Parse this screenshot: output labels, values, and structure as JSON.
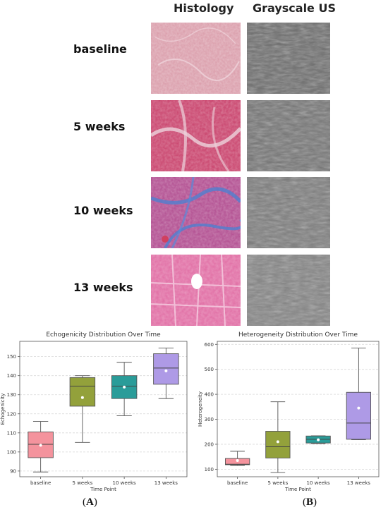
{
  "figure": {
    "column_headers": [
      "Histology",
      "Grayscale US"
    ],
    "rows": [
      {
        "label": "baseline",
        "histology_tint": "#d99aa8"
      },
      {
        "label": "5 weeks",
        "histology_tint": "#c8406a"
      },
      {
        "label": "10 weeks",
        "histology_tint": "#9a5fb0"
      },
      {
        "label": "13 weeks",
        "histology_tint": "#e06aa2"
      }
    ],
    "panel_labels": [
      {
        "open": "(",
        "letter": "A",
        "close": ")"
      },
      {
        "open": "(",
        "letter": "B",
        "close": ")"
      }
    ]
  },
  "chart_data": [
    {
      "type": "box",
      "title": "Echogenicity Distribution Over Time",
      "xlabel": "Time Point",
      "ylabel": "Echogenicity",
      "categories": [
        "baseline",
        "5 weeks",
        "10 weeks",
        "13 weeks"
      ],
      "colors": [
        "#f4939d",
        "#93a13b",
        "#2a9c99",
        "#ae9ae6"
      ],
      "ylim": [
        87,
        158
      ],
      "yticks": [
        90,
        100,
        110,
        120,
        130,
        140,
        150
      ],
      "boxes": [
        {
          "whislo": 89.5,
          "q1": 97,
          "med": 104,
          "q3": 110.5,
          "whishi": 116,
          "mean": 103.5
        },
        {
          "whislo": 105,
          "q1": 124,
          "med": 134.5,
          "q3": 139,
          "whishi": 140,
          "mean": 128.5
        },
        {
          "whislo": 119,
          "q1": 128,
          "med": 134.5,
          "q3": 140,
          "whishi": 147,
          "mean": 134
        },
        {
          "whislo": 128,
          "q1": 135.5,
          "med": 144,
          "q3": 151.5,
          "whishi": 154.5,
          "mean": 142.5
        }
      ],
      "grid": true
    },
    {
      "type": "box",
      "title": "Heterogeneity Distribution Over Time",
      "xlabel": "Time Point",
      "ylabel": "Heterogeneity",
      "categories": [
        "baseline",
        "5 weeks",
        "10 weeks",
        "13 weeks"
      ],
      "colors": [
        "#f4939d",
        "#93a13b",
        "#2a9c99",
        "#ae9ae6"
      ],
      "ylim": [
        70,
        612
      ],
      "yticks": [
        100,
        200,
        300,
        400,
        500,
        600
      ],
      "boxes": [
        {
          "whislo": 115,
          "q1": 118,
          "med": 120,
          "q3": 143,
          "whishi": 172,
          "mean": 135
        },
        {
          "whislo": 87,
          "q1": 145,
          "med": 190,
          "q3": 252,
          "whishi": 370,
          "mean": 210
        },
        {
          "whislo": 203,
          "q1": 205,
          "med": 220,
          "q3": 233,
          "whishi": 234,
          "mean": 218
        },
        {
          "whislo": 218,
          "q1": 220,
          "med": 285,
          "q3": 408,
          "whishi": 585,
          "mean": 345
        }
      ],
      "grid": true
    }
  ]
}
